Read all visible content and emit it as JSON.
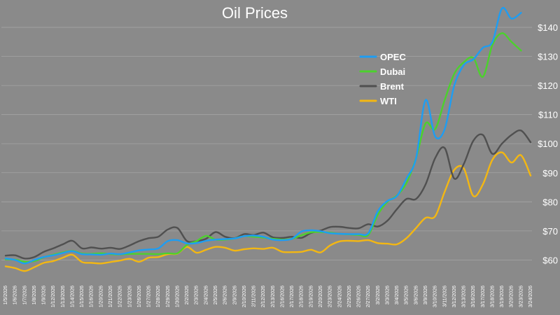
{
  "chart_data": {
    "type": "line",
    "title": "Oil Prices",
    "xlabel": "",
    "ylabel": "",
    "ylim": [
      56,
      147
    ],
    "y_ticks": [
      {
        "value": 60,
        "label": "$60"
      },
      {
        "value": 70,
        "label": "$70"
      },
      {
        "value": 80,
        "label": "$80"
      },
      {
        "value": 90,
        "label": "$90"
      },
      {
        "value": 100,
        "label": "$100"
      },
      {
        "value": 110,
        "label": "$110"
      },
      {
        "value": 120,
        "label": "$120"
      },
      {
        "value": 130,
        "label": "$130"
      },
      {
        "value": 140,
        "label": "$140"
      }
    ],
    "grid": true,
    "legend_position": "upper-center-right",
    "x": [
      "1/5/2026",
      "1/6/2026",
      "1/7/2026",
      "1/8/2026",
      "1/9/2026",
      "1/12/2026",
      "1/13/2026",
      "1/14/2026",
      "1/15/2026",
      "1/16/2026",
      "1/20/2026",
      "1/21/2026",
      "1/22/2026",
      "1/23/2026",
      "1/26/2026",
      "1/27/2026",
      "1/28/2026",
      "1/29/2026",
      "1/30/2026",
      "2/2/2026",
      "2/3/2026",
      "2/4/2026",
      "2/5/2026",
      "2/6/2026",
      "2/9/2026",
      "2/10/2026",
      "2/11/2026",
      "2/12/2026",
      "2/13/2026",
      "2/16/2026",
      "2/17/2026",
      "2/18/2026",
      "2/19/2026",
      "2/20/2026",
      "2/23/2026",
      "2/24/2026",
      "2/25/2026",
      "2/26/2026",
      "2/27/2026",
      "3/2/2026",
      "3/3/2026",
      "3/4/2026",
      "3/5/2026",
      "3/6/2026",
      "3/9/2026",
      "3/10/2026",
      "3/11/2026",
      "3/12/2026",
      "3/13/2026",
      "3/16/2026",
      "3/17/2026",
      "3/18/2026",
      "3/19/2026",
      "3/20/2026",
      "3/23/2026",
      "3/24/2026"
    ],
    "x_tick_labels": [
      "1/5/2026",
      "1/6/2026",
      "1/7/2026",
      "1/8/2026",
      "1/9/2026",
      "1/12/2026",
      "1/13/2026",
      "1/14/2026",
      "1/15/2026",
      "1/16/2026",
      "1/20/2026",
      "1/21/2026",
      "1/22/2026",
      "1/23/2026",
      "1/26/2026",
      "1/27/2026",
      "1/28/2026",
      "1/29/2026",
      "1/30/2026",
      "2/2/2026",
      "2/3/2026",
      "2/4/2026",
      "2/5/2026",
      "2/6/2026",
      "2/9/2026",
      "2/10/2026",
      "2/11/2026",
      "2/12/2026",
      "2/13/2026",
      "2/16/2026",
      "2/17/2026",
      "2/18/2026",
      "2/19/2026",
      "2/20/2026",
      "2/23/2026",
      "2/24/2026",
      "2/25/2026",
      "2/26/2026",
      "2/27/2026",
      "3/2/2026",
      "3/3/2026",
      "3/4/2026",
      "3/5/2026",
      "3/6/2026",
      "3/9/2026",
      "3/10/2026",
      "3/11/2026",
      "3/12/2026",
      "3/13/2026",
      "3/16/2026",
      "3/17/2026",
      "3/18/2026",
      "3/19/2026",
      "3/20/2026",
      "3/23/2026",
      "3/24/2026"
    ],
    "series": [
      {
        "name": "OPEC",
        "color": "#1e9df2",
        "values": [
          60.5,
          60.0,
          58.8,
          60.0,
          61.0,
          61.6,
          62.4,
          63.0,
          62.0,
          61.9,
          61.8,
          62.2,
          62.0,
          62.6,
          63.3,
          63.6,
          64.0,
          66.5,
          66.8,
          65.7,
          65.8,
          66.6,
          67.0,
          67.2,
          67.4,
          68.2,
          68.4,
          68.0,
          67.0,
          66.8,
          67.3,
          69.8,
          70.2,
          69.9,
          69.2,
          69.0,
          68.9,
          68.9,
          69.2,
          76.8,
          80.3,
          82.0,
          88.0,
          95.0,
          115.0,
          102.5,
          105.0,
          120.0,
          127.0,
          129.0,
          133.0,
          135.0,
          146.5,
          143.0,
          145.0,
          null
        ]
      },
      {
        "name": "Dubai",
        "color": "#4cd12d",
        "values": [
          60.2,
          60.1,
          59.4,
          59.6,
          60.9,
          61.8,
          62.6,
          63.1,
          62.2,
          62.1,
          62.3,
          62.0,
          61.9,
          62.1,
          62.1,
          62.1,
          62.0,
          62.3,
          62.3,
          65.2,
          66.5,
          68.3,
          67.0,
          67.0,
          67.4,
          68.2,
          68.0,
          67.7,
          67.3,
          67.0,
          67.3,
          68.5,
          69.5,
          69.6,
          69.4,
          69.0,
          68.8,
          68.6,
          68.6,
          75.6,
          80.0,
          82.2,
          86.5,
          95.0,
          107.0,
          105.0,
          115.0,
          124.0,
          128.0,
          129.5,
          123.0,
          134.0,
          138.0,
          135.0,
          132.0,
          null
        ]
      },
      {
        "name": "Brent",
        "color": "#505050",
        "values": [
          61.5,
          61.6,
          60.5,
          61.0,
          62.8,
          64.0,
          65.4,
          66.6,
          64.0,
          64.3,
          63.9,
          64.2,
          63.8,
          65.0,
          66.5,
          67.5,
          68.0,
          70.5,
          71.0,
          66.5,
          66.5,
          67.3,
          69.6,
          68.0,
          67.5,
          68.9,
          68.6,
          69.4,
          67.8,
          67.6,
          68.0,
          67.6,
          69.3,
          70.1,
          71.3,
          71.4,
          71.0,
          70.9,
          72.3,
          71.5,
          73.5,
          77.5,
          81.0,
          81.0,
          86.0,
          95.0,
          98.5,
          88.0,
          93.0,
          101.0,
          103.0,
          96.5,
          100.0,
          103.0,
          104.5,
          100.5
        ]
      },
      {
        "name": "WTI",
        "color": "#f3b713",
        "values": [
          57.8,
          57.2,
          56.2,
          57.5,
          59.0,
          59.6,
          60.8,
          61.8,
          59.3,
          59.0,
          58.8,
          59.3,
          59.8,
          60.4,
          59.4,
          60.8,
          61.0,
          62.0,
          62.2,
          64.5,
          62.5,
          63.5,
          64.5,
          64.2,
          63.2,
          63.7,
          64.0,
          63.8,
          64.2,
          62.8,
          62.7,
          62.8,
          63.5,
          62.6,
          65.0,
          66.4,
          66.6,
          66.5,
          66.8,
          65.8,
          65.6,
          65.4,
          67.5,
          71.0,
          74.5,
          75.0,
          83.5,
          91.0,
          91.5,
          82.0,
          86.0,
          94.5,
          97.0,
          93.5,
          96.0,
          89.0
        ]
      }
    ]
  }
}
